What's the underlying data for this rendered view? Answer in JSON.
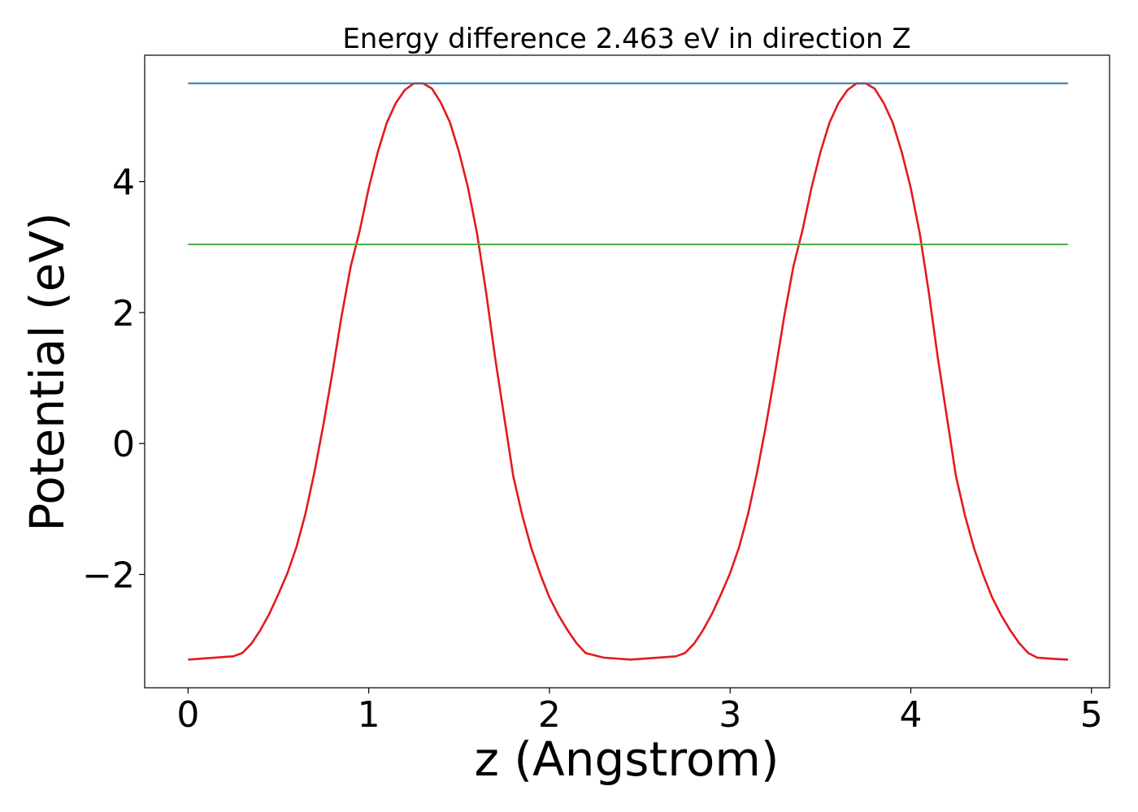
{
  "chart_data": {
    "type": "line",
    "title": "Energy difference 2.463 eV in direction Z",
    "xlabel": "z (Angstrom)",
    "ylabel": "Potential (eV)",
    "xlim": [
      -0.24,
      5.1
    ],
    "ylim": [
      -3.73,
      5.93
    ],
    "xticks": [
      0,
      1,
      2,
      3,
      4,
      5
    ],
    "yticks": [
      -2,
      0,
      2,
      4
    ],
    "xtick_labels": [
      "0",
      "1",
      "2",
      "3",
      "4",
      "5"
    ],
    "ytick_labels": [
      "−2",
      "0",
      "2",
      "4"
    ],
    "grid": false,
    "legend": "none",
    "series": [
      {
        "color": "#e31a1c",
        "x": [
          0.0,
          0.05,
          0.1,
          0.15,
          0.2,
          0.25,
          0.3,
          0.35,
          0.4,
          0.45,
          0.5,
          0.55,
          0.6,
          0.65,
          0.7,
          0.75,
          0.8,
          0.85,
          0.9,
          0.95,
          1.0,
          1.05,
          1.1,
          1.15,
          1.2,
          1.25,
          1.3,
          1.35,
          1.4,
          1.45,
          1.5,
          1.55,
          1.6,
          1.65,
          1.7,
          1.75,
          1.8,
          1.85,
          1.9,
          1.95,
          2.0,
          2.05,
          2.1,
          2.15,
          2.2,
          2.3,
          2.45,
          2.6,
          2.7,
          2.75,
          2.8,
          2.85,
          2.9,
          2.95,
          3.0,
          3.05,
          3.1,
          3.15,
          3.2,
          3.25,
          3.3,
          3.35,
          3.4,
          3.45,
          3.5,
          3.55,
          3.6,
          3.65,
          3.7,
          3.75,
          3.8,
          3.85,
          3.9,
          3.95,
          4.0,
          4.05,
          4.1,
          4.15,
          4.2,
          4.25,
          4.3,
          4.35,
          4.4,
          4.45,
          4.5,
          4.55,
          4.6,
          4.65,
          4.7,
          4.8,
          4.87
        ],
        "y": [
          -3.3,
          -3.29,
          -3.28,
          -3.27,
          -3.26,
          -3.25,
          -3.2,
          -3.06,
          -2.85,
          -2.6,
          -2.3,
          -1.98,
          -1.58,
          -1.07,
          -0.43,
          0.3,
          1.1,
          1.95,
          2.7,
          3.25,
          3.9,
          4.45,
          4.9,
          5.2,
          5.4,
          5.5,
          5.5,
          5.42,
          5.2,
          4.9,
          4.45,
          3.9,
          3.2,
          2.3,
          1.3,
          0.4,
          -0.5,
          -1.1,
          -1.6,
          -2.0,
          -2.35,
          -2.62,
          -2.85,
          -3.05,
          -3.2,
          -3.27,
          -3.3,
          -3.27,
          -3.25,
          -3.2,
          -3.06,
          -2.85,
          -2.6,
          -2.3,
          -1.98,
          -1.58,
          -1.07,
          -0.43,
          0.3,
          1.1,
          1.95,
          2.7,
          3.25,
          3.9,
          4.45,
          4.9,
          5.2,
          5.4,
          5.5,
          5.5,
          5.42,
          5.2,
          4.9,
          4.45,
          3.9,
          3.2,
          2.3,
          1.3,
          0.4,
          -0.5,
          -1.1,
          -1.6,
          -2.0,
          -2.35,
          -2.62,
          -2.85,
          -3.05,
          -3.2,
          -3.27,
          -3.29,
          -3.3
        ]
      },
      {
        "color": "#2878b8",
        "x": [
          0.0,
          4.87
        ],
        "y": [
          5.5,
          5.5
        ]
      },
      {
        "color": "#4daf4a",
        "x": [
          0.0,
          4.87
        ],
        "y": [
          3.04,
          3.04
        ]
      }
    ]
  }
}
